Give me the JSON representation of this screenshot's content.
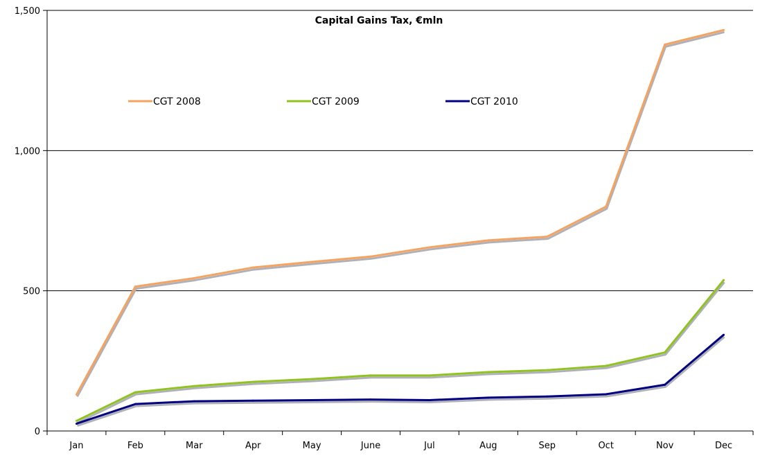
{
  "chart_data": {
    "type": "line",
    "title": "Capital Gains Tax, €mln",
    "xlabel": "",
    "ylabel": "",
    "categories": [
      "Jan",
      "Feb",
      "Mar",
      "Apr",
      "May",
      "June",
      "Jul",
      "Aug",
      "Sep",
      "Oct",
      "Nov",
      "Dec"
    ],
    "ylim": [
      0,
      1500
    ],
    "yticks": [
      0,
      500,
      1000,
      1500
    ],
    "ytick_labels": [
      "0",
      "500",
      "1,000",
      "1,500"
    ],
    "grid": "horizontal",
    "legend_position": "top-left",
    "series": [
      {
        "name": "CGT 2008",
        "color": "#f4a460",
        "values": [
          130,
          515,
          545,
          583,
          603,
          622,
          655,
          680,
          693,
          800,
          1378,
          1430
        ]
      },
      {
        "name": "CGT 2009",
        "color": "#8fc31f",
        "values": [
          36,
          138,
          160,
          175,
          185,
          198,
          198,
          210,
          217,
          232,
          280,
          538
        ]
      },
      {
        "name": "CGT 2010",
        "color": "#000080",
        "values": [
          26,
          96,
          106,
          108,
          110,
          112,
          110,
          119,
          123,
          131,
          165,
          343
        ]
      }
    ]
  }
}
